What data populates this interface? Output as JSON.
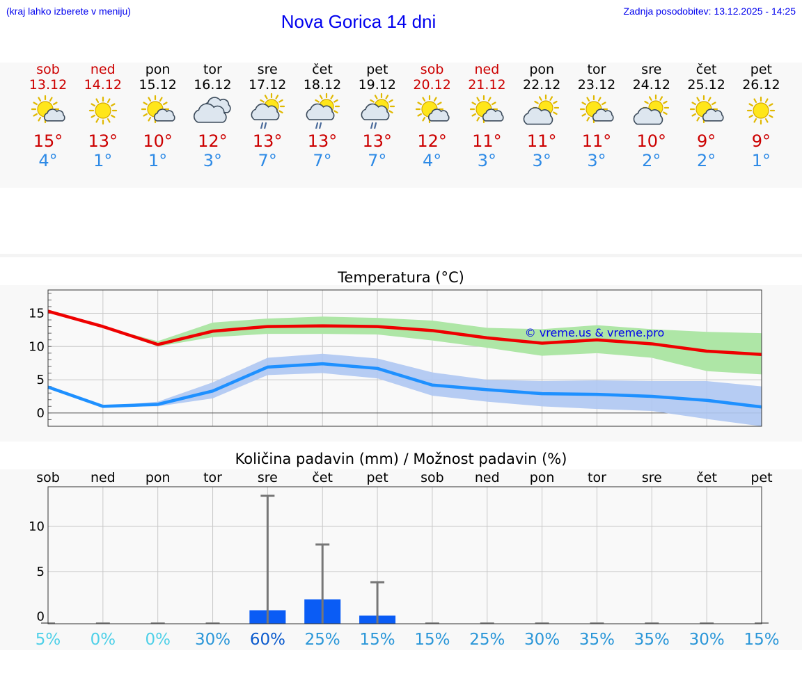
{
  "header": {
    "left_note": "(kraj lahko izberete v meniju)",
    "title": "Nova Gorica 14 dni",
    "updated": "Zadnja posodobitev: 13.12.2025 - 14:25"
  },
  "colors": {
    "max_line": "#ee0000",
    "max_band": "#aee6a6",
    "min_line": "#1e90ff",
    "min_band": "#aec6f2",
    "bar": "#0a5cf5",
    "weekend": "#cc0000",
    "link": "#0000ee"
  },
  "days": [
    {
      "name": "sob",
      "date": "13.12",
      "icon": "sun-small-cloud-icon",
      "max": "15°",
      "min": "4°",
      "weekend": true
    },
    {
      "name": "ned",
      "date": "14.12",
      "icon": "sun-icon",
      "max": "13°",
      "min": "1°",
      "weekend": true
    },
    {
      "name": "pon",
      "date": "15.12",
      "icon": "sun-small-cloud-icon",
      "max": "10°",
      "min": "1°",
      "weekend": false
    },
    {
      "name": "tor",
      "date": "16.12",
      "icon": "clouds-icon",
      "max": "12°",
      "min": "3°",
      "weekend": false
    },
    {
      "name": "sre",
      "date": "17.12",
      "icon": "sun-cloud-rain-icon",
      "max": "13°",
      "min": "7°",
      "weekend": false
    },
    {
      "name": "čet",
      "date": "18.12",
      "icon": "sun-cloud-rain-icon",
      "max": "13°",
      "min": "7°",
      "weekend": false
    },
    {
      "name": "pet",
      "date": "19.12",
      "icon": "sun-cloud-rain-icon",
      "max": "13°",
      "min": "7°",
      "weekend": false
    },
    {
      "name": "sob",
      "date": "20.12",
      "icon": "sun-small-cloud-icon",
      "max": "12°",
      "min": "4°",
      "weekend": true
    },
    {
      "name": "ned",
      "date": "21.12",
      "icon": "sun-small-cloud-icon",
      "max": "11°",
      "min": "3°",
      "weekend": true
    },
    {
      "name": "pon",
      "date": "22.12",
      "icon": "sun-big-cloud-icon",
      "max": "11°",
      "min": "3°",
      "weekend": false
    },
    {
      "name": "tor",
      "date": "23.12",
      "icon": "sun-small-cloud-icon",
      "max": "11°",
      "min": "3°",
      "weekend": false
    },
    {
      "name": "sre",
      "date": "24.12",
      "icon": "sun-big-cloud-icon",
      "max": "10°",
      "min": "2°",
      "weekend": false
    },
    {
      "name": "čet",
      "date": "25.12",
      "icon": "sun-small-cloud-icon",
      "max": "9°",
      "min": "2°",
      "weekend": false
    },
    {
      "name": "pet",
      "date": "26.12",
      "icon": "sun-icon",
      "max": "9°",
      "min": "1°",
      "weekend": false
    }
  ],
  "chart_data": [
    {
      "type": "line",
      "title": "Temperatura (°C)",
      "x": [
        0,
        1,
        2,
        3,
        4,
        5,
        6,
        7,
        8,
        9,
        10,
        11,
        12,
        13
      ],
      "ylim": [
        -2,
        18.5
      ],
      "yticks": [
        0,
        5,
        10,
        15
      ],
      "watermark": "© vreme.us & vreme.pro",
      "series": [
        {
          "name": "max",
          "values": [
            15.3,
            13.0,
            10.3,
            12.3,
            13.0,
            13.1,
            13.0,
            12.4,
            11.3,
            10.5,
            11.0,
            10.4,
            9.3,
            8.8
          ],
          "band_low": [
            15.3,
            13.0,
            10.0,
            11.4,
            11.9,
            11.9,
            11.8,
            10.9,
            9.8,
            8.6,
            9.0,
            8.3,
            6.3,
            5.8
          ],
          "band_high": [
            15.3,
            13.0,
            10.8,
            13.6,
            14.2,
            14.5,
            14.3,
            13.9,
            12.8,
            12.6,
            13.2,
            12.6,
            12.2,
            12.0
          ]
        },
        {
          "name": "min",
          "values": [
            3.9,
            1.0,
            1.3,
            3.3,
            6.9,
            7.4,
            6.7,
            4.2,
            3.5,
            2.9,
            2.8,
            2.5,
            1.9,
            0.9
          ],
          "band_low": [
            3.9,
            1.0,
            1.0,
            2.2,
            5.7,
            6.0,
            5.2,
            2.6,
            1.7,
            1.0,
            0.6,
            0.3,
            -0.9,
            -2.0
          ],
          "band_high": [
            3.9,
            1.0,
            1.7,
            4.6,
            8.3,
            8.9,
            8.2,
            6.1,
            5.0,
            4.8,
            4.9,
            4.8,
            4.8,
            4.0
          ]
        }
      ]
    },
    {
      "type": "bar",
      "title": "Količina padavin (mm) / Možnost padavin (%)",
      "categories": [
        "sob",
        "ned",
        "pon",
        "tor",
        "sre",
        "čet",
        "pet",
        "sob",
        "ned",
        "pon",
        "tor",
        "sre",
        "čet",
        "pet"
      ],
      "values": [
        0,
        0,
        0,
        0,
        0.7,
        1.9,
        0.1,
        0,
        0,
        0,
        0,
        0,
        0,
        0
      ],
      "max_values": [
        0,
        0,
        0,
        0,
        13.4,
        8.0,
        3.8,
        0,
        0,
        0,
        0,
        0,
        0,
        0
      ],
      "probability": [
        "5%",
        "0%",
        "0%",
        "30%",
        "60%",
        "25%",
        "15%",
        "15%",
        "25%",
        "30%",
        "35%",
        "35%",
        "30%",
        "15%"
      ],
      "probability_colors": [
        "#4fd0e8",
        "#4fd0e8",
        "#4fd0e8",
        "#2a96d8",
        "#0a5acd",
        "#2a96d8",
        "#2a96d8",
        "#2a96d8",
        "#2a96d8",
        "#2a96d8",
        "#2a96d8",
        "#2a96d8",
        "#2a96d8",
        "#2a96d8"
      ],
      "ylim": [
        -0.8,
        14.4
      ],
      "yticks": [
        0,
        5,
        10
      ]
    }
  ]
}
